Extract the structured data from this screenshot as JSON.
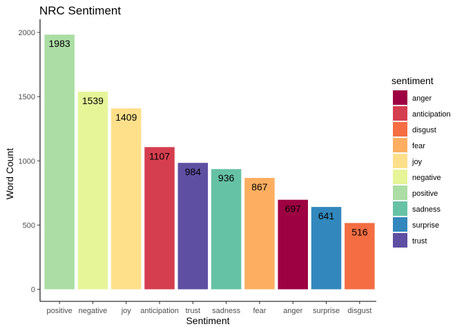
{
  "chart_data": {
    "type": "bar",
    "title": "NRC Sentiment",
    "xlabel": "Sentiment",
    "ylabel": "Word Count",
    "ylim": [
      0,
      2100
    ],
    "yticks": [
      0,
      500,
      1000,
      1500,
      2000
    ],
    "grid": false,
    "legend_placement": "right",
    "categories": [
      "positive",
      "negative",
      "joy",
      "anticipation",
      "trust",
      "sadness",
      "fear",
      "anger",
      "surprise",
      "disgust"
    ],
    "values": [
      1983,
      1539,
      1409,
      1107,
      984,
      936,
      867,
      697,
      641,
      516
    ],
    "legend": {
      "title": "sentiment",
      "entries": [
        {
          "label": "anger",
          "color": "#9E0142"
        },
        {
          "label": "anticipation",
          "color": "#D53E4F"
        },
        {
          "label": "disgust",
          "color": "#F46D43"
        },
        {
          "label": "fear",
          "color": "#FDAE61"
        },
        {
          "label": "joy",
          "color": "#FEE08B"
        },
        {
          "label": "negative",
          "color": "#E6F598"
        },
        {
          "label": "positive",
          "color": "#ABDDA4"
        },
        {
          "label": "sadness",
          "color": "#66C2A5"
        },
        {
          "label": "surprise",
          "color": "#3288BD"
        },
        {
          "label": "trust",
          "color": "#5E4FA2"
        }
      ]
    }
  }
}
